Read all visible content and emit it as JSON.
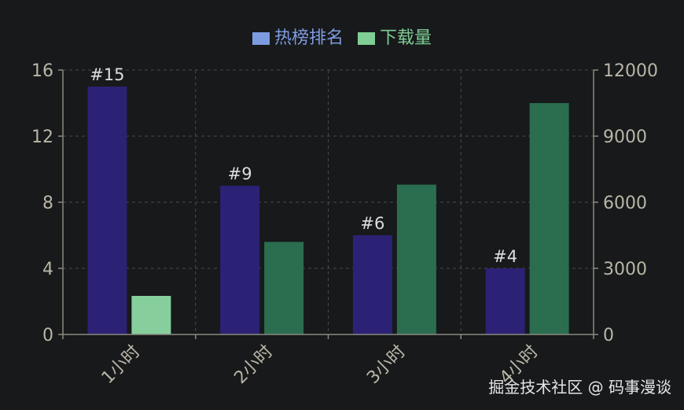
{
  "chart_data": {
    "type": "bar",
    "categories": [
      "1小时",
      "2小时",
      "3小时",
      "4小时"
    ],
    "series": [
      {
        "name": "热榜排名",
        "axis": "left",
        "values": [
          15,
          9,
          6,
          4
        ],
        "labels": [
          "#15",
          "#9",
          "#6",
          "#4"
        ],
        "colors": [
          "#2b2275",
          "#2b2275",
          "#2b2275",
          "#2b2275"
        ]
      },
      {
        "name": "下载量",
        "axis": "right",
        "values": [
          1750,
          4200,
          6800,
          10500
        ],
        "colors": [
          "#86cf9c",
          "#2b6e4f",
          "#2b6e4f",
          "#2b6e4f"
        ]
      }
    ],
    "y_left": {
      "min": 0,
      "max": 16,
      "ticks": [
        "0",
        "4",
        "8",
        "12",
        "16"
      ]
    },
    "y_right": {
      "min": 0,
      "max": 12000,
      "ticks": [
        "0",
        "3000",
        "6000",
        "9000",
        "12000"
      ]
    },
    "grid": true,
    "legend_position": "top-center"
  },
  "legend_colors": {
    "热榜排名": "#7d9ce0",
    "下载量": "#7fce95"
  },
  "style": {
    "background": "#17191b",
    "axis_color": "#8a8a80",
    "tick_text_color": "#b8b6a6",
    "grid_color": "#4a4a4a",
    "label_text_color": "#dddddd"
  },
  "watermark": "掘金技术社区 @ 码事漫谈"
}
